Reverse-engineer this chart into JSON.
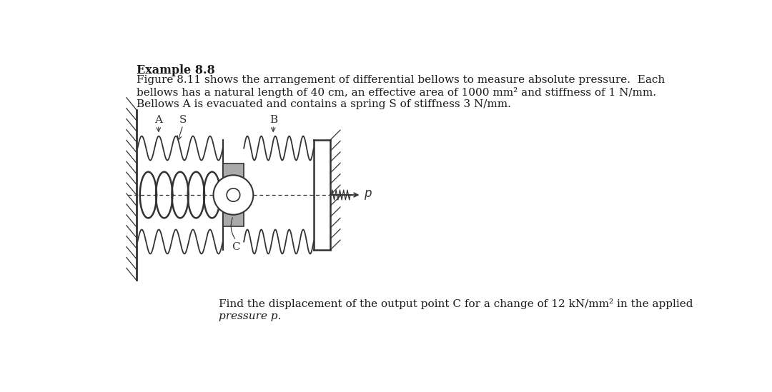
{
  "title_bold": "Example 8.8",
  "paragraph1": "Figure 8.11 shows the arrangement of differential bellows to measure absolute pressure.  Each",
  "paragraph2": "bellows has a natural length of 40 cm, an effective area of 1000 mm² and stiffness of 1 N/mm.",
  "paragraph3": "Bellows A is evacuated and contains a spring S of stiffness 3 N/mm.",
  "question1": "Find the displacement of the output point C for a change of 12 kN/mm² in the applied",
  "question2": "pressure p.",
  "bg_color": "#ffffff",
  "text_color": "#1a1a1a",
  "diagram_color": "#333333"
}
